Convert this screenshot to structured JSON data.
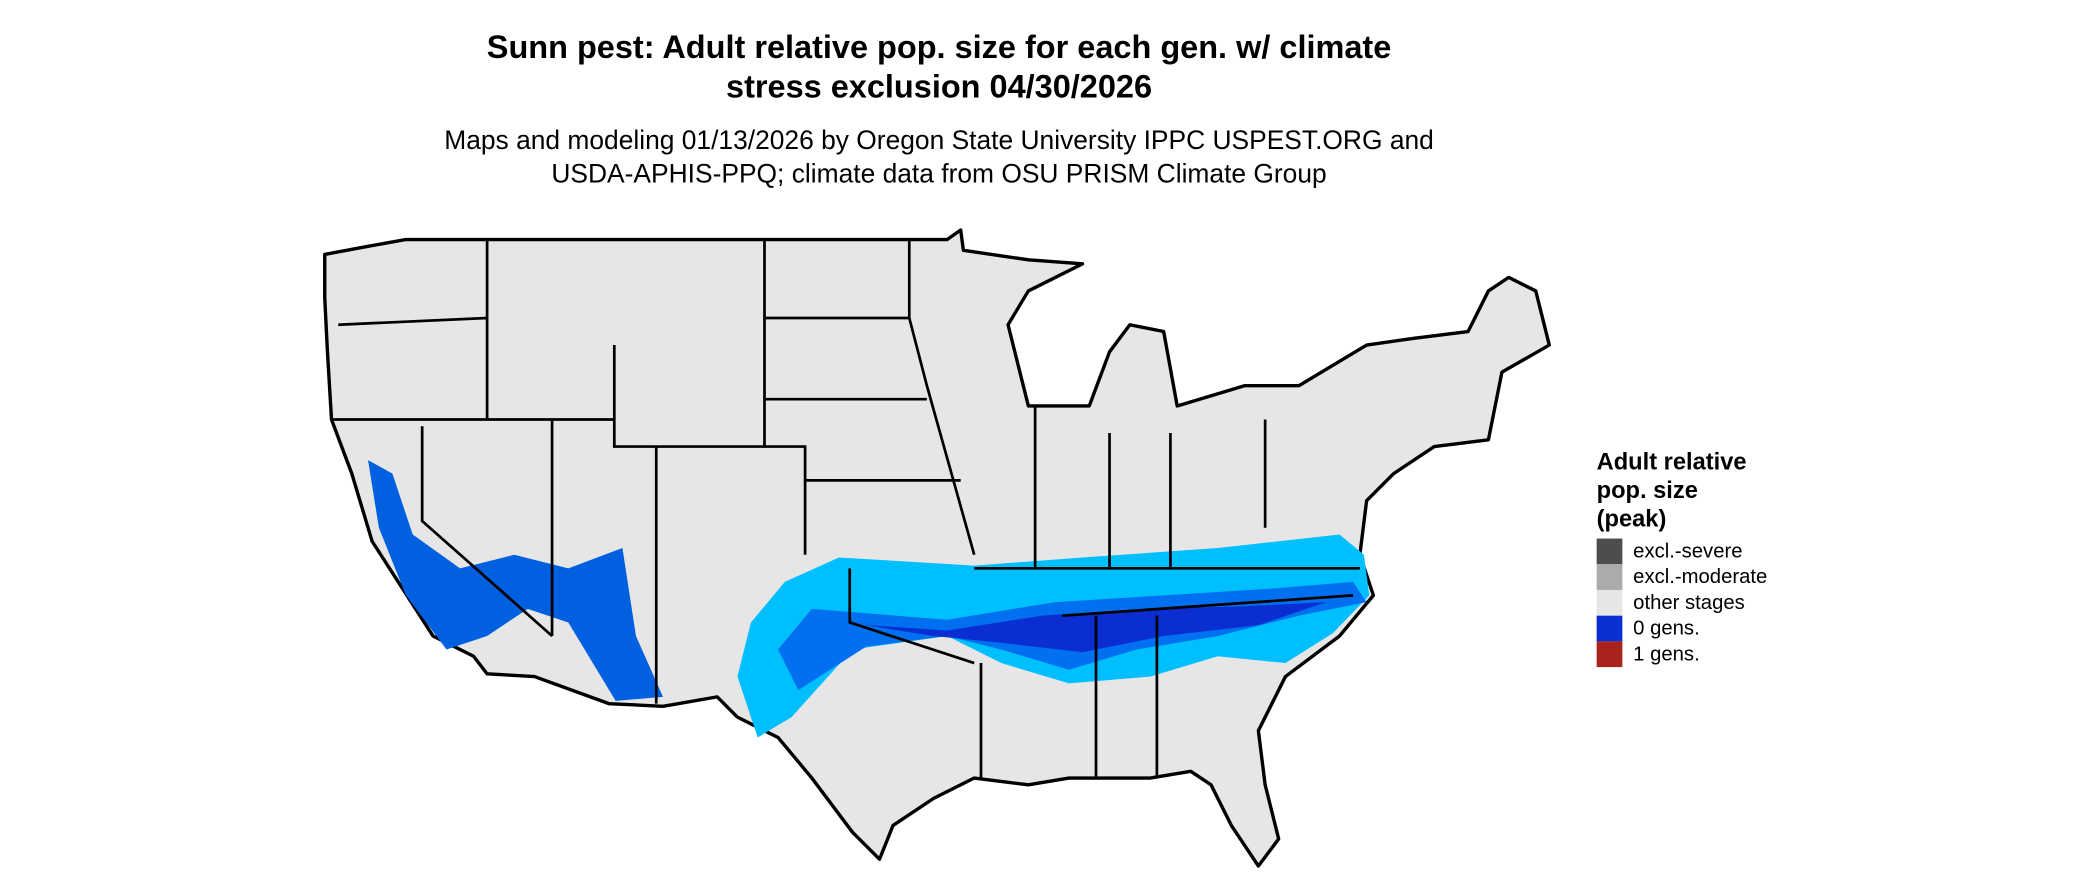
{
  "title": [
    "Sunn pest: Adult relative pop. size for each gen. w/ climate",
    "stress exclusion 04/30/2026"
  ],
  "subtitle": [
    "Maps and modeling 01/13/2026 by Oregon State University IPPC USPEST.ORG and",
    "USDA-APHIS-PPQ; climate data from OSU PRISM Climate Group"
  ],
  "legend": {
    "title": [
      "Adult relative",
      "pop. size",
      "(peak)"
    ],
    "items": [
      {
        "label": "excl.-severe",
        "color": "#4d4d4d"
      },
      {
        "label": "excl.-moderate",
        "color": "#ababab"
      },
      {
        "label": "other stages",
        "color": "#e6e6e6"
      },
      {
        "label": "0 gens.",
        "color": "#0a2ed2"
      },
      {
        "label": "1 gens.",
        "color": "#a8231c"
      }
    ]
  }
}
